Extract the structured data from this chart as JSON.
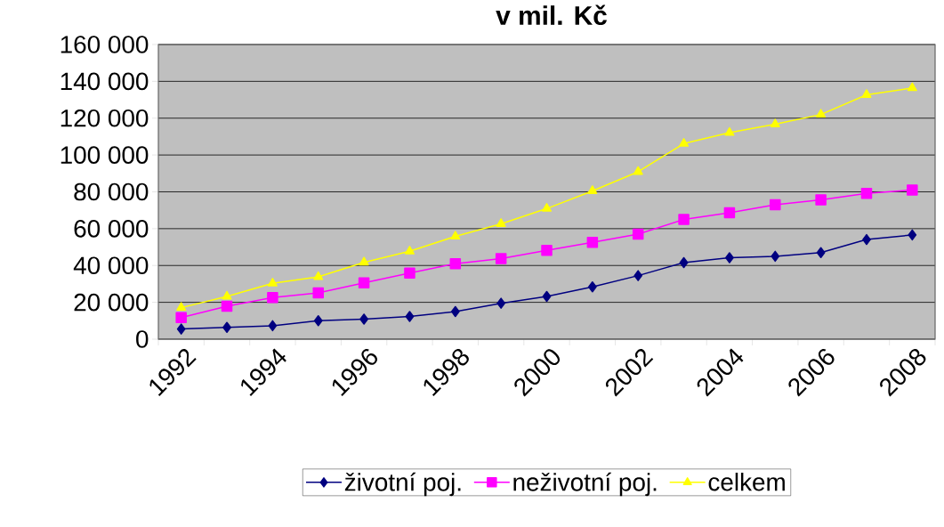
{
  "chart_data": {
    "type": "line",
    "title": "v mil. Kč",
    "categories": [
      "1992",
      null,
      "1994",
      null,
      "1996",
      null,
      "1998",
      null,
      "2000",
      null,
      "2002",
      null,
      "2004",
      null,
      "2006",
      null,
      "2008"
    ],
    "series": [
      {
        "name": "životní poj.",
        "color": "#000080",
        "marker": "diamond",
        "values": [
          5500,
          6400,
          7300,
          10000,
          10900,
          12300,
          15000,
          19500,
          23200,
          28400,
          34500,
          41600,
          44200,
          45000,
          47000,
          54100,
          56600
        ]
      },
      {
        "name": "neživotní poj.",
        "color": "#ff00ff",
        "marker": "square",
        "values": [
          11700,
          17900,
          22600,
          25100,
          30600,
          35900,
          41000,
          43700,
          48200,
          52600,
          57000,
          65000,
          68600,
          73000,
          75600,
          79200,
          81000
        ]
      },
      {
        "name": "celkem",
        "color": "#ffff00",
        "marker": "triangle",
        "values": [
          17100,
          23200,
          30300,
          33800,
          41700,
          47700,
          55800,
          62600,
          70900,
          80500,
          90900,
          106200,
          112100,
          116700,
          122000,
          132700,
          136400
        ]
      }
    ],
    "ylim": [
      0,
      160000
    ],
    "yticks": [
      {
        "value": 0,
        "label": "0"
      },
      {
        "value": 20000,
        "label": "20 000"
      },
      {
        "value": 40000,
        "label": "40 000"
      },
      {
        "value": 60000,
        "label": "60 000"
      },
      {
        "value": 80000,
        "label": "80 000"
      },
      {
        "value": 100000,
        "label": "100 000"
      },
      {
        "value": 120000,
        "label": "120 000"
      },
      {
        "value": 140000,
        "label": "140 000"
      },
      {
        "value": 160000,
        "label": "160 000"
      }
    ],
    "grid": "y",
    "legend": "bottom",
    "line_style": "solid"
  }
}
